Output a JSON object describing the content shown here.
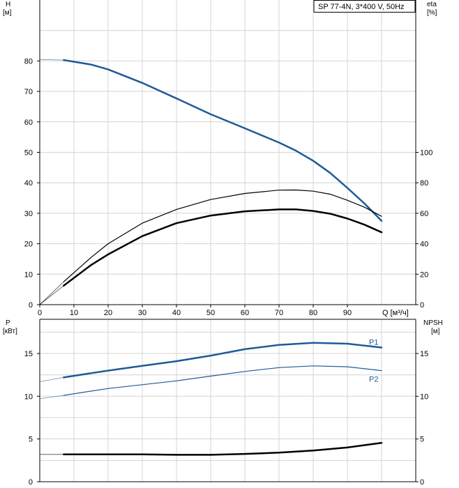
{
  "colors": {
    "blue": "#1f5a96",
    "black": "#000000",
    "grid": "#d4d4d4"
  },
  "chart_data": [
    {
      "type": "line",
      "legend": "SP 77-4N, 3*400 V, 50Hz",
      "left_axis": {
        "label_line1": "H",
        "label_line2": "[м]",
        "range": [
          0,
          100
        ],
        "ticks": [
          0,
          10,
          20,
          30,
          40,
          50,
          60,
          70,
          80
        ]
      },
      "right_axis": {
        "label_line1": "eta",
        "label_line2": "[%]",
        "range": [
          0,
          200
        ],
        "ticks": [
          0,
          20,
          40,
          60,
          80,
          100
        ]
      },
      "x_axis": {
        "label": "Q [м³/ч]",
        "range": [
          0,
          110
        ],
        "ticks": [
          0,
          10,
          20,
          30,
          40,
          50,
          60,
          70,
          80,
          90
        ]
      },
      "grid": true,
      "series": [
        {
          "id": "H",
          "axis": "left",
          "color": "#1f5a96",
          "width": 2.5,
          "faint_extension": true,
          "x": [
            0,
            7,
            15,
            20,
            30,
            40,
            50,
            60,
            70,
            75,
            80,
            85,
            90,
            95,
            100
          ],
          "y": [
            80.5,
            80.3,
            78.8,
            77.2,
            72.8,
            67.7,
            62.5,
            57.9,
            53.2,
            50.5,
            47.2,
            43.2,
            38.3,
            33.2,
            27.5
          ]
        },
        {
          "id": "eta",
          "axis": "right",
          "color": "#000000",
          "width": 1.2,
          "faint_extension": true,
          "x": [
            0,
            7,
            15,
            20,
            30,
            40,
            50,
            60,
            70,
            75,
            80,
            85,
            90,
            95,
            100
          ],
          "y": [
            0,
            15,
            31,
            40,
            53.5,
            62.5,
            69,
            73,
            75.2,
            75.3,
            74.5,
            72.5,
            68.5,
            64,
            58
          ]
        },
        {
          "id": "eta-bold",
          "axis": "right",
          "color": "#000000",
          "width": 2.5,
          "faint_extension": true,
          "x": [
            0,
            7,
            15,
            20,
            30,
            40,
            50,
            60,
            70,
            75,
            80,
            85,
            90,
            95,
            100
          ],
          "y": [
            0,
            12.5,
            26,
            33,
            45,
            53.5,
            58.5,
            61.3,
            62.5,
            62.5,
            61.5,
            59.7,
            56.5,
            52.5,
            47.5
          ]
        }
      ]
    },
    {
      "type": "line",
      "left_axis": {
        "label_line1": "P",
        "label_line2": "[кВт]",
        "range": [
          0,
          19
        ],
        "ticks": [
          0,
          5,
          10,
          15
        ]
      },
      "right_axis": {
        "label_line1": "NPSH",
        "label_line2": "[м]",
        "range": [
          0,
          19
        ],
        "ticks": [
          0,
          5,
          10,
          15
        ]
      },
      "x_axis": {
        "range": [
          0,
          110
        ]
      },
      "grid": true,
      "series": [
        {
          "id": "P1",
          "name": "P1",
          "axis": "left",
          "color": "#1f5a96",
          "width": 2.5,
          "faint_extension": true,
          "x": [
            0,
            7,
            15,
            20,
            30,
            40,
            50,
            60,
            70,
            80,
            90,
            100
          ],
          "y": [
            11.7,
            12.2,
            12.7,
            13.0,
            13.55,
            14.1,
            14.75,
            15.5,
            16.0,
            16.25,
            16.15,
            15.7
          ]
        },
        {
          "id": "P2",
          "name": "P2",
          "axis": "left",
          "color": "#1f5a96",
          "width": 1.2,
          "faint_extension": true,
          "x": [
            0,
            7,
            15,
            20,
            30,
            40,
            50,
            60,
            70,
            80,
            90,
            100
          ],
          "y": [
            9.7,
            10.1,
            10.6,
            10.9,
            11.35,
            11.8,
            12.35,
            12.9,
            13.35,
            13.55,
            13.45,
            13.0
          ]
        },
        {
          "id": "NPSH",
          "axis": "right",
          "color": "#000000",
          "width": 2.5,
          "faint_extension": true,
          "x": [
            0,
            7,
            15,
            20,
            30,
            40,
            50,
            60,
            70,
            80,
            90,
            100
          ],
          "y": [
            3.2,
            3.2,
            3.2,
            3.2,
            3.2,
            3.15,
            3.15,
            3.25,
            3.4,
            3.65,
            4.0,
            4.55
          ]
        }
      ]
    }
  ]
}
